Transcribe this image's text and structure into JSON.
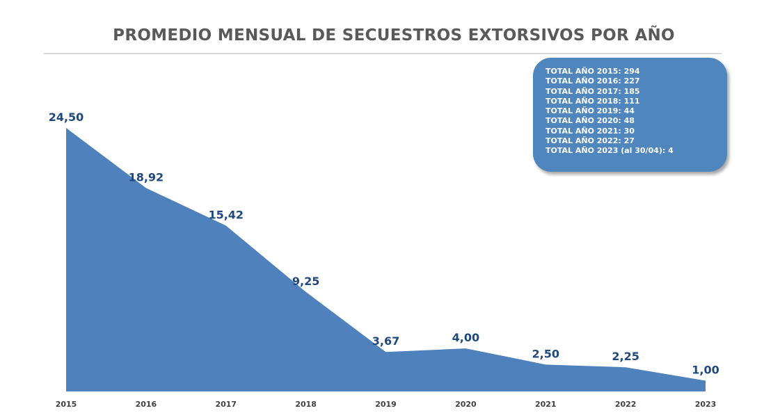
{
  "chart_data": {
    "type": "area",
    "title": "PROMEDIO MENSUAL DE SECUESTROS EXTORSIVOS POR AÑO",
    "categories": [
      "2015",
      "2016",
      "2017",
      "2018",
      "2019",
      "2020",
      "2021",
      "2022",
      "2023"
    ],
    "values": [
      24.5,
      18.92,
      15.42,
      9.25,
      3.67,
      4.0,
      2.5,
      2.25,
      1.0
    ],
    "data_labels": [
      "24,50",
      "18,92",
      "15,42",
      "9,25",
      "3,67",
      "4,00",
      "2,50",
      "2,25",
      "1,00"
    ],
    "xlabel": "",
    "ylabel": "",
    "ylim": [
      0,
      24.5
    ],
    "grid": false,
    "color": "#4f81bd",
    "label_color": "#1f497d",
    "annotation": [
      "TOTAL AÑO 2015: 294",
      "TOTAL AÑO 2016: 227",
      "TOTAL AÑO 2017: 185",
      "TOTAL AÑO 2018: 111",
      "TOTAL AÑO 2019: 44",
      "TOTAL AÑO 2020: 48",
      "TOTAL AÑO 2021: 30",
      "TOTAL AÑO 2022: 27",
      "TOTAL AÑO 2023 (al 30/04): 4"
    ]
  }
}
